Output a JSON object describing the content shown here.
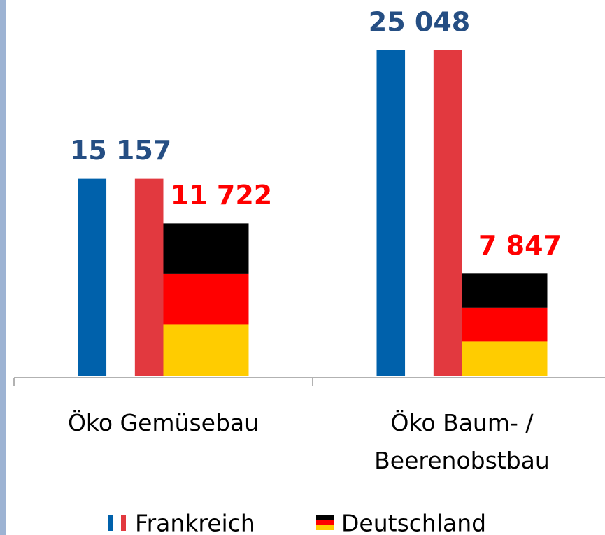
{
  "chart_data": {
    "type": "bar",
    "categories": [
      "Öko Gemüsebau",
      "Öko Baum- / Beerenobstbau"
    ],
    "series": [
      {
        "name": "Frankreich",
        "colors": [
          "#0061ab",
          "#ffffff",
          "#e2393f"
        ],
        "label_color": "#254e83",
        "values": [
          15157,
          25048
        ],
        "value_labels": [
          "15 157",
          "25 048"
        ]
      },
      {
        "name": "Deutschland",
        "colors": [
          "#000000",
          "#ff0000",
          "#ffcc00"
        ],
        "label_color": "#ff0000",
        "values": [
          11722,
          7847
        ],
        "value_labels": [
          "11 722",
          "7 847"
        ]
      }
    ],
    "legend": "bottom"
  }
}
